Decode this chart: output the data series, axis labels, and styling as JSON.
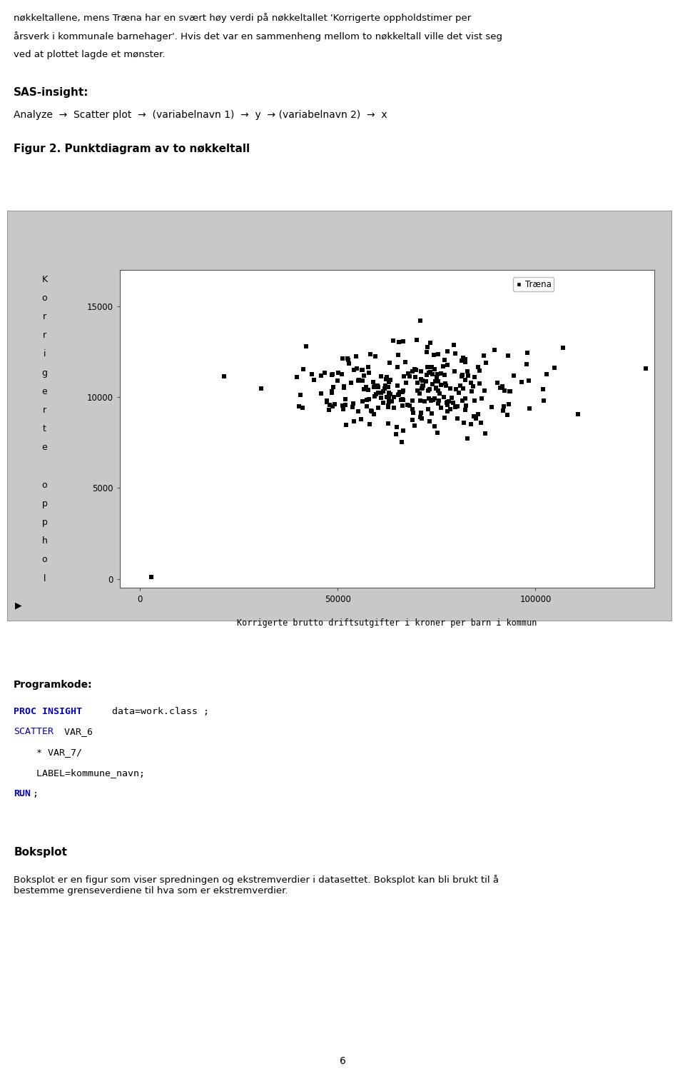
{
  "page_text_top": [
    "nøkkeltallene, mens Træna har en svært høy verdi på nøkkeltallet 'Korrigerte oppholdstimer per",
    "årsverk i kommunale barnehager'. Hvis det var en sammenheng mellom to nøkkeltall ville det vist seg",
    "ved at plottet lagde et mønster."
  ],
  "sas_insight_label": "SAS-insight:",
  "sas_insight_text": "Analyze  →  Scatter plot  →  (variabelnavn 1)  →  y  → (variabelnavn 2)  →  x",
  "fig_caption": "Figur 2. Punktdiagram av to nøkkeltall",
  "ylabel_chars": [
    "K",
    "o",
    "r",
    "r",
    "i",
    "g",
    "e",
    "r",
    "t",
    "e",
    "",
    "o",
    "p",
    "p",
    "h",
    "o",
    "l"
  ],
  "xlabel": "Korrigerte brutto driftsutgifter i kroner per barn i kommun",
  "yticks": [
    0,
    5000,
    10000,
    15000
  ],
  "xticks": [
    0,
    50000,
    100000
  ],
  "ylim": [
    -500,
    17000
  ],
  "xlim": [
    -5000,
    130000
  ],
  "legend_label": "Træna",
  "scatter_color": "#000000",
  "marker_size": 18,
  "plot_bg": "#ffffff",
  "outer_bg": "#c8c8c8",
  "programkode_title": "Programkode:",
  "boksplot_title": "Boksplot",
  "boksplot_text": "Boksplot er en figur som viser spredningen og ekstremverdier i datasettet. Boksplot kan bli brukt til å\nbestemme grenseverdiene til hva som er ekstremverdier.",
  "page_number": "6",
  "scatter_seed": 42,
  "n_points": 280
}
